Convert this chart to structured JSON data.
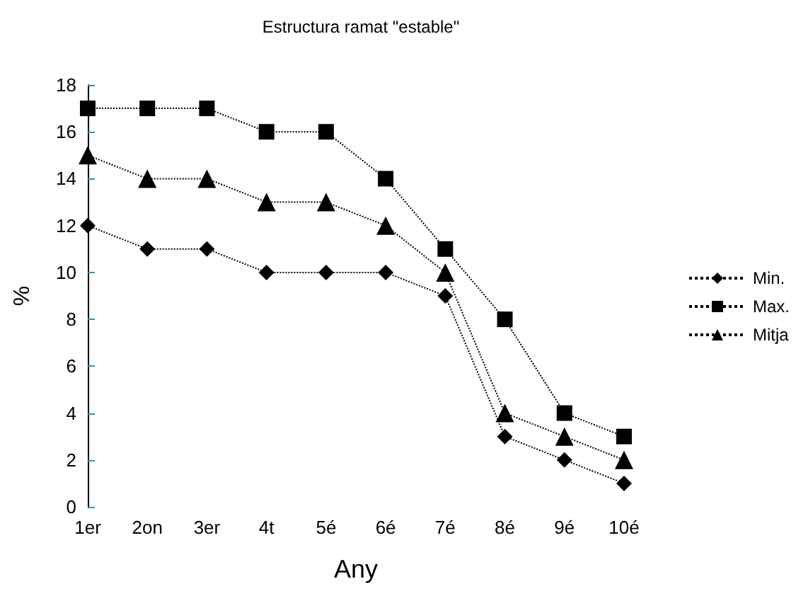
{
  "chart_data": {
    "type": "line",
    "title": "Estructura ramat \"estable\"",
    "xlabel": "Any",
    "ylabel": "%",
    "categories": [
      "1er",
      "2on",
      "3er",
      "4t",
      "5é",
      "6é",
      "7é",
      "8é",
      "9é",
      "10é"
    ],
    "series": [
      {
        "name": "Min.",
        "color": "#000000",
        "marker": "diamond",
        "values": [
          12,
          11,
          11,
          10,
          10,
          10,
          9,
          3,
          2,
          1
        ]
      },
      {
        "name": "Max.",
        "color": "#000000",
        "marker": "square",
        "values": [
          17,
          17,
          17,
          16,
          16,
          14,
          11,
          8,
          4,
          3
        ]
      },
      {
        "name": "Mitja",
        "color": "#000000",
        "marker": "triangle",
        "values": [
          15,
          14,
          14,
          13,
          13,
          12,
          10,
          4,
          3,
          2
        ]
      }
    ],
    "ylim": [
      0,
      18
    ],
    "yticks": [
      0,
      2,
      4,
      6,
      8,
      10,
      12,
      14,
      16,
      18
    ],
    "grid": false,
    "legend": "right",
    "line_style": "dotted"
  }
}
